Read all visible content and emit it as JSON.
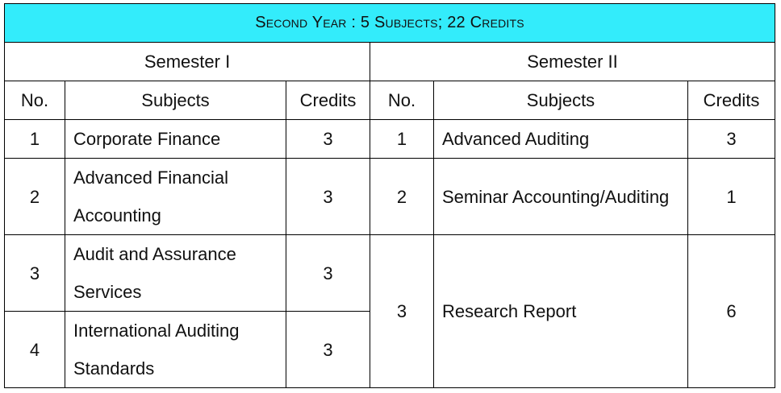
{
  "title": "Second Year : 5 Subjects; 22 Credits",
  "semesters": [
    {
      "label": "Semester I"
    },
    {
      "label": "Semester II"
    }
  ],
  "headers": {
    "no": "No.",
    "subjects": "Subjects",
    "credits": "Credits"
  },
  "semester1": {
    "rows": [
      {
        "no": "1",
        "subject": "Corporate Finance",
        "credits": "3"
      },
      {
        "no": "2",
        "subject": "Advanced Financial Accounting",
        "credits": "3"
      },
      {
        "no": "3",
        "subject": "Audit and Assurance Services",
        "credits": "3"
      },
      {
        "no": "4",
        "subject": "International Auditing Standards",
        "credits": "3"
      }
    ]
  },
  "semester2": {
    "rows": [
      {
        "no": "1",
        "subject": "Advanced Auditing",
        "credits": "3"
      },
      {
        "no": "2",
        "subject": "Seminar Accounting/Auditing",
        "credits": "1"
      },
      {
        "no": "3",
        "subject": "Research Report",
        "credits": "6"
      }
    ]
  },
  "colors": {
    "title_background": "#33ECFB",
    "border": "#000000",
    "text": "#111111"
  }
}
